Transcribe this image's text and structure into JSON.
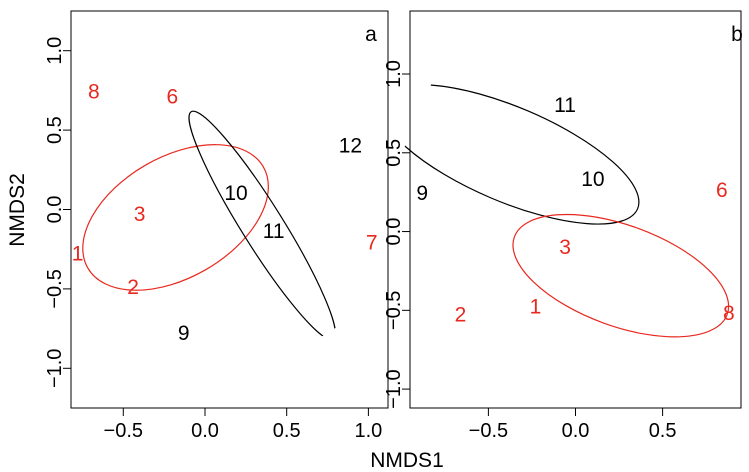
{
  "figure": {
    "xlabel": "NMDS1",
    "ylabel": "NMDS2"
  },
  "colors": {
    "group_red": "#e8291f",
    "group_black": "#000000"
  },
  "chart_data": [
    {
      "type": "scatter",
      "panel_label": "a",
      "xlim": [
        -0.82,
        1.12
      ],
      "ylim": [
        -1.25,
        1.25
      ],
      "x_ticks": [
        -0.5,
        0.0,
        0.5,
        1.0
      ],
      "x_tick_labels": [
        "−0.5",
        "0.0",
        "0.5",
        "1.0"
      ],
      "y_ticks": [
        -1.0,
        -0.5,
        0.0,
        0.5,
        1.0
      ],
      "y_tick_labels": [
        "−1.0",
        "−0.5",
        "0.0",
        "0.5",
        "1.0"
      ],
      "series": [
        {
          "color": "#e8291f",
          "points": [
            {
              "label": "1",
              "x": -0.78,
              "y": -0.28
            },
            {
              "label": "2",
              "x": -0.44,
              "y": -0.49
            },
            {
              "label": "3",
              "x": -0.4,
              "y": -0.03
            },
            {
              "label": "6",
              "x": -0.2,
              "y": 0.71
            },
            {
              "label": "7",
              "x": 1.02,
              "y": -0.21
            },
            {
              "label": "8",
              "x": -0.68,
              "y": 0.74
            }
          ],
          "ellipse": {
            "cx": -0.18,
            "cy": -0.05,
            "rx": 0.62,
            "ry": 0.38,
            "angle": -30
          }
        },
        {
          "color": "#000000",
          "points": [
            {
              "label": "9",
              "x": -0.13,
              "y": -0.78
            },
            {
              "label": "10",
              "x": 0.19,
              "y": 0.1
            },
            {
              "label": "11",
              "x": 0.42,
              "y": -0.14
            },
            {
              "label": "12",
              "x": 0.89,
              "y": 0.4
            }
          ],
          "ellipse": {
            "cx": 0.35,
            "cy": -0.1,
            "rx": 0.82,
            "ry": 0.13,
            "angle": 58
          }
        }
      ]
    },
    {
      "type": "scatter",
      "panel_label": "b",
      "xlim": [
        -0.95,
        0.95
      ],
      "ylim": [
        -1.12,
        1.4
      ],
      "x_ticks": [
        -0.5,
        0.0,
        0.5
      ],
      "x_tick_labels": [
        "−0.5",
        "0.0",
        "0.5"
      ],
      "y_ticks": [
        -1.0,
        -0.5,
        0.0,
        0.5,
        1.0
      ],
      "y_tick_labels": [
        "−1.0",
        "−0.5",
        "0.0",
        "0.5",
        "1.0"
      ],
      "series": [
        {
          "color": "#000000",
          "points": [
            {
              "label": "9",
              "x": -0.88,
              "y": 0.24
            },
            {
              "label": "10",
              "x": 0.1,
              "y": 0.33
            },
            {
              "label": "11",
              "x": -0.06,
              "y": 0.8
            }
          ],
          "ellipse": {
            "cx": -0.38,
            "cy": 0.49,
            "rx": 0.8,
            "ry": 0.3,
            "angle": 23
          }
        },
        {
          "color": "#e8291f",
          "points": [
            {
              "label": "1",
              "x": -0.23,
              "y": -0.48
            },
            {
              "label": "2",
              "x": -0.66,
              "y": -0.53
            },
            {
              "label": "3",
              "x": -0.06,
              "y": -0.1
            },
            {
              "label": "6",
              "x": 0.84,
              "y": 0.26
            },
            {
              "label": "8",
              "x": 0.88,
              "y": -0.52
            }
          ],
          "ellipse": {
            "cx": 0.26,
            "cy": -0.28,
            "rx": 0.65,
            "ry": 0.32,
            "angle": 20
          }
        }
      ]
    }
  ]
}
